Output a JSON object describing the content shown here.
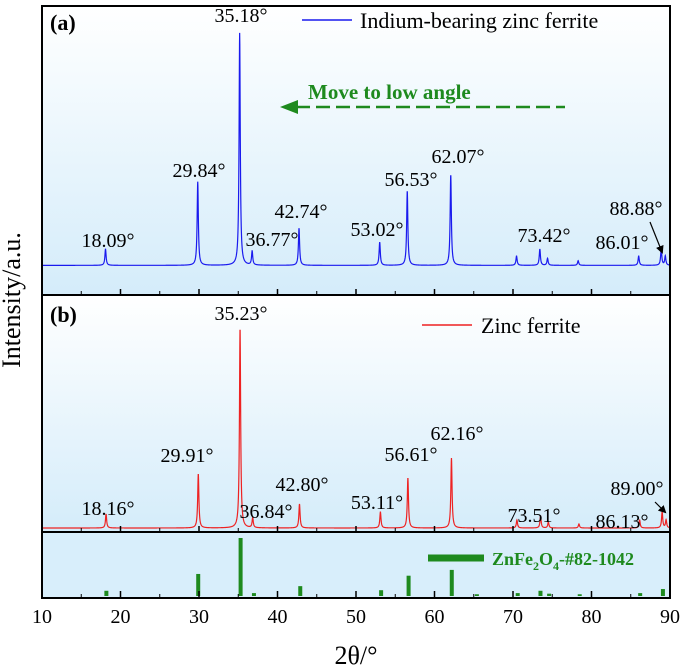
{
  "y_axis_label": "Intensity/a.u.",
  "x_axis_label": "2θ/°",
  "colors": {
    "series_a": "#1a1aee",
    "series_b": "#ee2222",
    "reference": "#1e8a1e",
    "annotation": "#1e8a1e",
    "arrow": "#1e8a1e",
    "panel_bg_top": "#ffffff",
    "panel_bg_bottom": "#d4ecfa"
  },
  "panel_a": {
    "label": "(a)",
    "legend": "Indium-bearing zinc ferrite",
    "annotation": "Move to low angle",
    "peak_labels": [
      {
        "text": "18.09°",
        "x": 18.09
      },
      {
        "text": "29.84°",
        "x": 29.84
      },
      {
        "text": "35.18°",
        "x": 35.18
      },
      {
        "text": "36.77°",
        "x": 36.77
      },
      {
        "text": "42.74°",
        "x": 42.74
      },
      {
        "text": "53.02°",
        "x": 53.02
      },
      {
        "text": "56.53°",
        "x": 56.53
      },
      {
        "text": "62.07°",
        "x": 62.07
      },
      {
        "text": "73.42°",
        "x": 73.42
      },
      {
        "text": "86.01°",
        "x": 86.01
      },
      {
        "text": "88.88°",
        "x": 88.88
      }
    ]
  },
  "panel_b": {
    "label": "(b)",
    "legend": "Zinc ferrite",
    "reference_label": {
      "formula": "ZnFe",
      "sub1": "2",
      "mid": "O",
      "sub2": "4",
      "suffix": "-#82-1042"
    },
    "peak_labels": [
      {
        "text": "18.16°",
        "x": 18.16
      },
      {
        "text": "29.91°",
        "x": 29.91
      },
      {
        "text": "35.23°",
        "x": 35.23
      },
      {
        "text": "36.84°",
        "x": 36.84
      },
      {
        "text": "42.80°",
        "x": 42.8
      },
      {
        "text": "53.11°",
        "x": 53.11
      },
      {
        "text": "56.61°",
        "x": 56.61
      },
      {
        "text": "62.16°",
        "x": 62.16
      },
      {
        "text": "73.51°",
        "x": 73.51
      },
      {
        "text": "86.13°",
        "x": 86.13
      },
      {
        "text": "89.00°",
        "x": 89.0
      }
    ]
  },
  "chart_data": [
    {
      "type": "line",
      "panel": "a",
      "xlabel": "2θ/°",
      "ylabel": "Intensity/a.u.",
      "xlim": [
        10,
        90
      ],
      "ylim": [
        0,
        1.05
      ],
      "legend_position": "top-right",
      "grid": false,
      "series": [
        {
          "name": "Indium-bearing zinc ferrite",
          "baseline": 0.02,
          "peaks": [
            {
              "x": 18.09,
              "height": 0.07
            },
            {
              "x": 29.84,
              "height": 0.36
            },
            {
              "x": 35.18,
              "height": 1.0
            },
            {
              "x": 36.77,
              "height": 0.06
            },
            {
              "x": 42.74,
              "height": 0.16
            },
            {
              "x": 53.02,
              "height": 0.1
            },
            {
              "x": 56.53,
              "height": 0.32
            },
            {
              "x": 62.07,
              "height": 0.39
            },
            {
              "x": 70.45,
              "height": 0.04
            },
            {
              "x": 73.42,
              "height": 0.07
            },
            {
              "x": 74.4,
              "height": 0.03
            },
            {
              "x": 78.3,
              "height": 0.02
            },
            {
              "x": 86.01,
              "height": 0.04
            },
            {
              "x": 88.88,
              "height": 0.07
            },
            {
              "x": 89.4,
              "height": 0.04
            }
          ]
        }
      ]
    },
    {
      "type": "line",
      "panel": "b",
      "xlabel": "2θ/°",
      "ylabel": "Intensity/a.u.",
      "xlim": [
        10,
        90
      ],
      "ylim": [
        0,
        1.05
      ],
      "legend_position": "top-right",
      "grid": false,
      "series": [
        {
          "name": "Zinc ferrite",
          "baseline": 0.02,
          "peaks": [
            {
              "x": 18.16,
              "height": 0.07
            },
            {
              "x": 29.91,
              "height": 0.27
            },
            {
              "x": 35.23,
              "height": 1.0
            },
            {
              "x": 36.84,
              "height": 0.05
            },
            {
              "x": 42.8,
              "height": 0.12
            },
            {
              "x": 53.11,
              "height": 0.08
            },
            {
              "x": 56.61,
              "height": 0.25
            },
            {
              "x": 62.16,
              "height": 0.35
            },
            {
              "x": 70.5,
              "height": 0.04
            },
            {
              "x": 73.51,
              "height": 0.06
            },
            {
              "x": 74.5,
              "height": 0.03
            },
            {
              "x": 78.4,
              "height": 0.02
            },
            {
              "x": 86.13,
              "height": 0.04
            },
            {
              "x": 89.0,
              "height": 0.08
            },
            {
              "x": 89.5,
              "height": 0.04
            }
          ]
        }
      ]
    },
    {
      "type": "bar",
      "panel": "b-reference",
      "xlim": [
        10,
        90
      ],
      "ylim": [
        0,
        1.0
      ],
      "series": [
        {
          "name": "ZnFe2O4-#82-1042",
          "x": [
            18.2,
            29.9,
            35.3,
            37.0,
            42.9,
            53.2,
            56.7,
            62.2,
            65.4,
            70.6,
            73.5,
            74.6,
            78.5,
            86.2,
            89.1
          ],
          "values": [
            0.09,
            0.38,
            1.0,
            0.05,
            0.17,
            0.1,
            0.35,
            0.45,
            0.03,
            0.05,
            0.09,
            0.04,
            0.03,
            0.05,
            0.12
          ]
        }
      ]
    }
  ],
  "x_ticks": [
    10,
    20,
    30,
    40,
    50,
    60,
    70,
    80,
    90
  ]
}
